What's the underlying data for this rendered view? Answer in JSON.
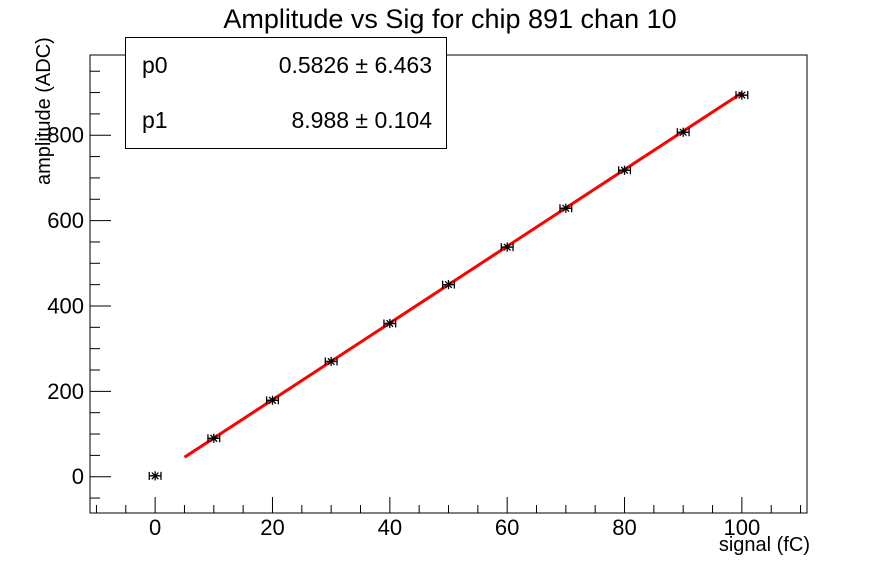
{
  "chart_data": {
    "type": "scatter",
    "title": "Amplitude vs Sig for chip 891 chan 10",
    "xlabel": "signal (fC)",
    "ylabel": "amplitude (ADC)",
    "x": [
      0,
      10,
      20,
      30,
      40,
      50,
      60,
      70,
      80,
      90,
      100
    ],
    "y": [
      2,
      90,
      179,
      270,
      359,
      450,
      538,
      629,
      718,
      807,
      894
    ],
    "x_err": 1.0,
    "xlim": [
      -11.1,
      111.1
    ],
    "ylim": [
      -85,
      988
    ],
    "x_major_ticks": [
      0,
      20,
      40,
      60,
      80,
      100
    ],
    "x_minor_step": 5,
    "y_major_ticks": [
      0,
      200,
      400,
      600,
      800
    ],
    "y_minor_step": 50,
    "grid": false,
    "legend": "none",
    "marker": "asterisk-with-x-error-bars",
    "marker_color": "#000000",
    "fit": {
      "type": "linear",
      "p0": 0.5826,
      "p1": 8.988,
      "range": [
        5,
        100
      ],
      "color": "#ff0000"
    }
  },
  "stats": {
    "rows": [
      {
        "label": "p0",
        "value": "0.5826 ± 6.463"
      },
      {
        "label": "p1",
        "value": "8.988 ± 0.104"
      }
    ]
  },
  "colors": {
    "background": "#ffffff",
    "axis": "#000000",
    "fit_line": "#ff0000",
    "text": "#000000"
  }
}
